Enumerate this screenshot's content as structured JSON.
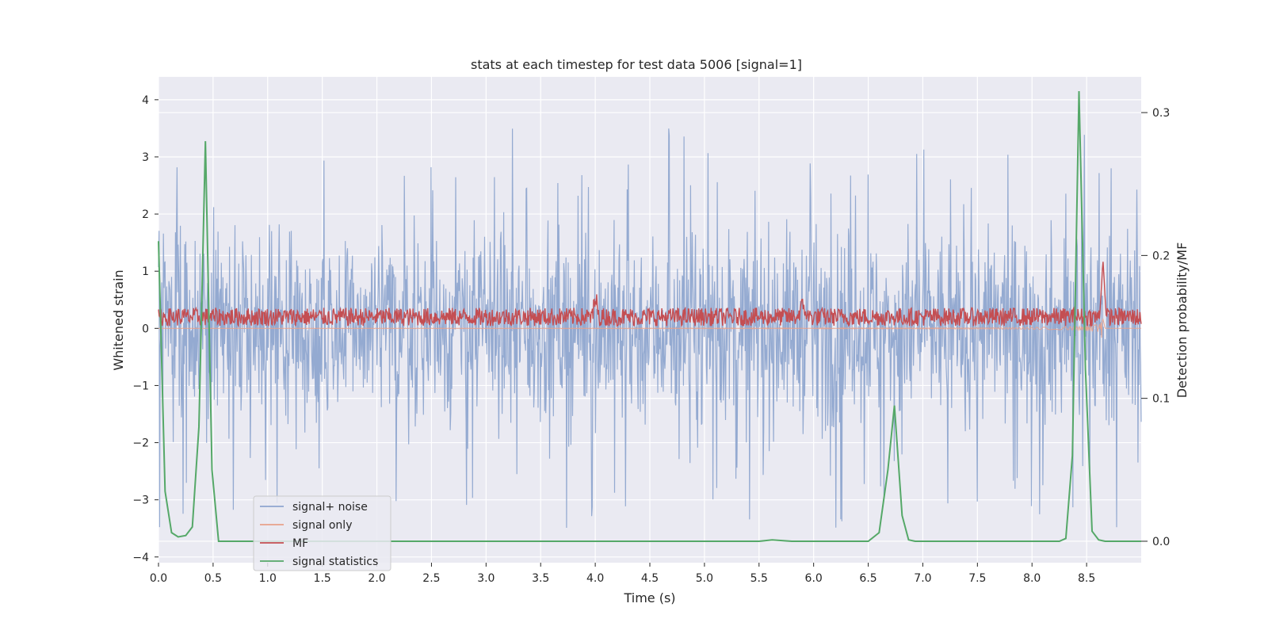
{
  "chart_data": {
    "type": "line",
    "title": "stats at each timestep for test data 5006 [signal=1]",
    "xlabel": "Time (s)",
    "ylabel": "Whitened strain",
    "y2label": "Detection probability/MF",
    "xlim": [
      0,
      9.0
    ],
    "ylim": [
      -4.1,
      4.4
    ],
    "y2lim": [
      -0.015,
      0.325
    ],
    "x_ticks": [
      "0.0",
      "0.5",
      "1.0",
      "1.5",
      "2.0",
      "2.5",
      "3.0",
      "3.5",
      "4.0",
      "4.5",
      "5.0",
      "5.5",
      "6.0",
      "6.5",
      "7.0",
      "7.5",
      "8.0",
      "8.5"
    ],
    "y_ticks": [
      "4",
      "3",
      "2",
      "1",
      "0",
      "−1",
      "−2",
      "−3",
      "−4"
    ],
    "y2_ticks": [
      "0.3",
      "0.2",
      "0.1",
      "0.0"
    ],
    "grid": true,
    "legend_position": "lower-left",
    "series": [
      {
        "name": "signal+ noise",
        "color": "#8fa6cf",
        "axis": "left",
        "description": "whitened noisy strain, amplitude roughly ±1.2 typical, peaks up to ±3.5",
        "envelope": 1.2,
        "peak": 3.5
      },
      {
        "name": "signal only",
        "color": "#e8a08a",
        "axis": "left",
        "description": "chirp signal growing toward merger near 8.65 s",
        "merger_time": 8.65,
        "peak": 1.3
      },
      {
        "name": "MF",
        "color": "#c44e52",
        "axis": "left",
        "description": "matched filter output, baseline about 0.2",
        "baseline": 0.2,
        "peak": 1.0
      },
      {
        "name": "signal statistics",
        "color": "#55a868",
        "axis": "right",
        "x": [
          0.0,
          0.06,
          0.12,
          0.18,
          0.25,
          0.31,
          0.37,
          0.43,
          0.49,
          0.55,
          0.61,
          0.67,
          1.0,
          2.0,
          3.0,
          4.0,
          5.0,
          5.5,
          5.62,
          5.8,
          6.0,
          6.5,
          6.6,
          6.68,
          6.74,
          6.81,
          6.87,
          6.93,
          7.0,
          7.5,
          8.0,
          8.25,
          8.31,
          8.37,
          8.43,
          8.49,
          8.55,
          8.61,
          8.67,
          9.0
        ],
        "y": [
          0.21,
          0.035,
          0.006,
          0.003,
          0.004,
          0.01,
          0.08,
          0.28,
          0.05,
          0.0,
          0.0,
          0.0,
          0.0,
          0.0,
          0.0,
          0.0,
          0.0,
          0.0,
          0.001,
          0.0,
          0.0,
          0.0,
          0.006,
          0.05,
          0.095,
          0.018,
          0.001,
          0.0,
          0.0,
          0.0,
          0.0,
          0.0,
          0.002,
          0.06,
          0.315,
          0.12,
          0.007,
          0.001,
          0.0,
          0.0
        ]
      }
    ]
  }
}
